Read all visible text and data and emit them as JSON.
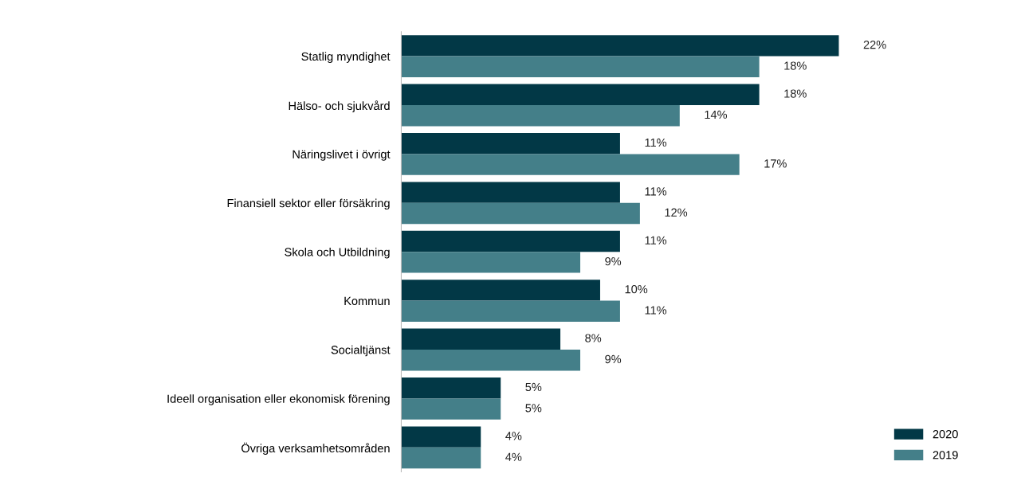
{
  "chart_data": {
    "type": "bar",
    "orientation": "horizontal",
    "categories": [
      "Statlig myndighet",
      "Hälso- och sjukvård",
      "Näringslivet i övrigt",
      "Finansiell sektor eller försäkring",
      "Skola och Utbildning",
      "Kommun",
      "Socialtjänst",
      "Ideell organisation eller ekonomisk förening",
      "Övriga verksamhetsområden"
    ],
    "series": [
      {
        "name": "2020",
        "color": "#023846",
        "values": [
          22,
          18,
          11,
          11,
          11,
          10,
          8,
          5,
          4
        ],
        "value_labels": [
          "22%",
          "18%",
          "11%",
          "11%",
          "11%",
          "10%",
          "8%",
          "5%",
          "4%"
        ]
      },
      {
        "name": "2019",
        "color": "#447f89",
        "values": [
          18,
          14,
          17,
          12,
          9,
          11,
          9,
          5,
          4
        ],
        "value_labels": [
          "18%",
          "14%",
          "17%",
          "12%",
          "9%",
          "11%",
          "9%",
          "5%",
          "4%"
        ]
      }
    ],
    "relative": false,
    "legend": "bottom right",
    "grid": false
  }
}
